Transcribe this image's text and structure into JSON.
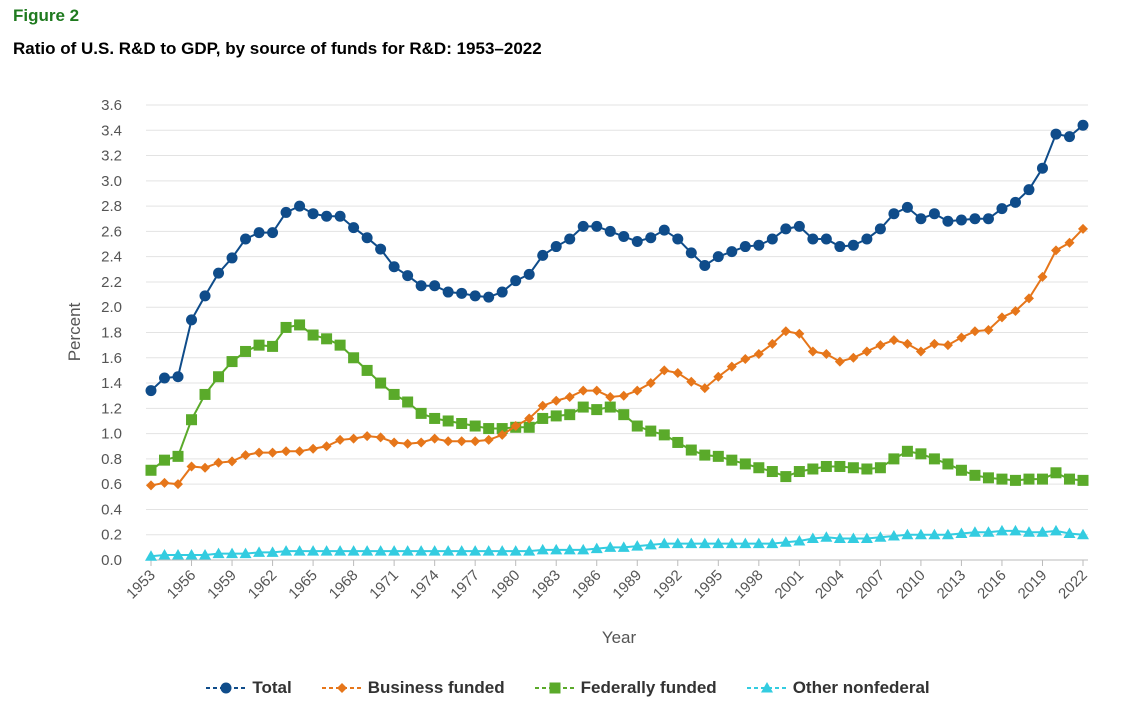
{
  "figure_label": "Figure 2",
  "title": "Ratio of U.S. R&D to GDP, by source of funds for R&D: 1953–2022",
  "chart_data": {
    "type": "line",
    "xlabel": "Year",
    "ylabel": "Percent",
    "ylim": [
      0,
      3.6
    ],
    "yticks": [
      "0.0",
      "0.2",
      "0.4",
      "0.6",
      "0.8",
      "1.0",
      "1.2",
      "1.4",
      "1.6",
      "1.8",
      "2.0",
      "2.2",
      "2.4",
      "2.6",
      "2.8",
      "3.0",
      "3.2",
      "3.4",
      "3.6"
    ],
    "xticks": [
      "1953",
      "1956",
      "1959",
      "1962",
      "1965",
      "1968",
      "1971",
      "1974",
      "1977",
      "1980",
      "1983",
      "1986",
      "1989",
      "1992",
      "1995",
      "1998",
      "2001",
      "2004",
      "2007",
      "2010",
      "2013",
      "2016",
      "2019",
      "2022"
    ],
    "grid": "horizontal",
    "legend_position": "bottom",
    "x": [
      1953,
      1954,
      1955,
      1956,
      1957,
      1958,
      1959,
      1960,
      1961,
      1962,
      1963,
      1964,
      1965,
      1966,
      1967,
      1968,
      1969,
      1970,
      1971,
      1972,
      1973,
      1974,
      1975,
      1976,
      1977,
      1978,
      1979,
      1980,
      1981,
      1982,
      1983,
      1984,
      1985,
      1986,
      1987,
      1988,
      1989,
      1990,
      1991,
      1992,
      1993,
      1994,
      1995,
      1996,
      1997,
      1998,
      1999,
      2000,
      2001,
      2002,
      2003,
      2004,
      2005,
      2006,
      2007,
      2008,
      2009,
      2010,
      2011,
      2012,
      2013,
      2014,
      2015,
      2016,
      2017,
      2018,
      2019,
      2020,
      2021,
      2022
    ],
    "series": [
      {
        "name": "Total",
        "color": "#0f4c8a",
        "marker": "circle",
        "values": [
          1.34,
          1.44,
          1.45,
          1.9,
          2.09,
          2.27,
          2.39,
          2.54,
          2.59,
          2.59,
          2.75,
          2.8,
          2.74,
          2.72,
          2.72,
          2.63,
          2.55,
          2.46,
          2.32,
          2.25,
          2.17,
          2.17,
          2.12,
          2.11,
          2.09,
          2.08,
          2.12,
          2.21,
          2.26,
          2.41,
          2.48,
          2.54,
          2.64,
          2.64,
          2.6,
          2.56,
          2.52,
          2.55,
          2.61,
          2.54,
          2.43,
          2.33,
          2.4,
          2.44,
          2.48,
          2.49,
          2.54,
          2.62,
          2.64,
          2.54,
          2.54,
          2.48,
          2.49,
          2.54,
          2.62,
          2.74,
          2.79,
          2.7,
          2.74,
          2.68,
          2.69,
          2.7,
          2.7,
          2.78,
          2.83,
          2.93,
          3.1,
          3.37,
          3.35,
          3.44
        ]
      },
      {
        "name": "Business funded",
        "color": "#e6761a",
        "marker": "diamond",
        "values": [
          0.59,
          0.61,
          0.6,
          0.74,
          0.73,
          0.77,
          0.78,
          0.83,
          0.85,
          0.85,
          0.86,
          0.86,
          0.88,
          0.9,
          0.95,
          0.96,
          0.98,
          0.97,
          0.93,
          0.92,
          0.93,
          0.96,
          0.94,
          0.94,
          0.94,
          0.95,
          0.99,
          1.06,
          1.12,
          1.22,
          1.26,
          1.29,
          1.34,
          1.34,
          1.29,
          1.3,
          1.34,
          1.4,
          1.5,
          1.48,
          1.41,
          1.36,
          1.45,
          1.53,
          1.59,
          1.63,
          1.71,
          1.81,
          1.79,
          1.65,
          1.63,
          1.57,
          1.6,
          1.65,
          1.7,
          1.74,
          1.71,
          1.65,
          1.71,
          1.7,
          1.76,
          1.81,
          1.82,
          1.92,
          1.97,
          2.07,
          2.24,
          2.45,
          2.51,
          2.62
        ]
      },
      {
        "name": "Federally funded",
        "color": "#5aaa2a",
        "marker": "square",
        "values": [
          0.71,
          0.79,
          0.82,
          1.11,
          1.31,
          1.45,
          1.57,
          1.65,
          1.7,
          1.69,
          1.84,
          1.86,
          1.78,
          1.75,
          1.7,
          1.6,
          1.5,
          1.4,
          1.31,
          1.25,
          1.16,
          1.12,
          1.1,
          1.08,
          1.06,
          1.04,
          1.04,
          1.05,
          1.05,
          1.12,
          1.14,
          1.15,
          1.21,
          1.19,
          1.21,
          1.15,
          1.06,
          1.02,
          0.99,
          0.93,
          0.87,
          0.83,
          0.82,
          0.79,
          0.76,
          0.73,
          0.7,
          0.66,
          0.7,
          0.72,
          0.74,
          0.74,
          0.73,
          0.72,
          0.73,
          0.8,
          0.86,
          0.84,
          0.8,
          0.76,
          0.71,
          0.67,
          0.65,
          0.64,
          0.63,
          0.64,
          0.64,
          0.69,
          0.64,
          0.63
        ]
      },
      {
        "name": "Other nonfederal",
        "color": "#33cce0",
        "marker": "triangle",
        "values": [
          0.03,
          0.04,
          0.04,
          0.04,
          0.04,
          0.05,
          0.05,
          0.05,
          0.06,
          0.06,
          0.07,
          0.07,
          0.07,
          0.07,
          0.07,
          0.07,
          0.07,
          0.07,
          0.07,
          0.07,
          0.07,
          0.07,
          0.07,
          0.07,
          0.07,
          0.07,
          0.07,
          0.07,
          0.07,
          0.08,
          0.08,
          0.08,
          0.08,
          0.09,
          0.1,
          0.1,
          0.11,
          0.12,
          0.13,
          0.13,
          0.13,
          0.13,
          0.13,
          0.13,
          0.13,
          0.13,
          0.13,
          0.14,
          0.15,
          0.17,
          0.18,
          0.17,
          0.17,
          0.17,
          0.18,
          0.19,
          0.2,
          0.2,
          0.2,
          0.2,
          0.21,
          0.22,
          0.22,
          0.23,
          0.23,
          0.22,
          0.22,
          0.23,
          0.21,
          0.2
        ]
      }
    ]
  }
}
